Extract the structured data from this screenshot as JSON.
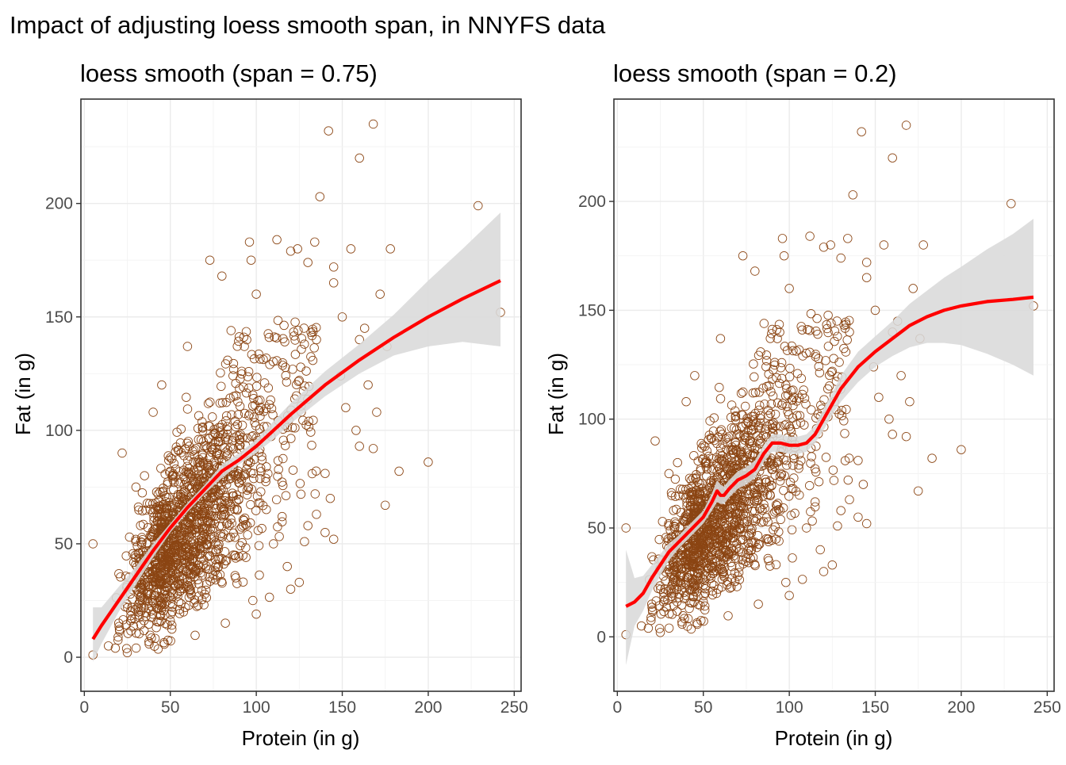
{
  "figure": {
    "title": "Impact of adjusting loess smooth span, in NNYFS data"
  },
  "chart_data": [
    {
      "type": "scatter",
      "title": "loess smooth (span = 0.75)",
      "xlabel": "Protein (in g)",
      "ylabel": "Fat (in g)",
      "xlim": [
        -2,
        254
      ],
      "ylim": [
        -15,
        246
      ],
      "xticks": [
        0,
        50,
        100,
        150,
        200,
        250
      ],
      "yticks": [
        0,
        50,
        100,
        150,
        200
      ],
      "grid": true,
      "colors": {
        "points": "#8B4513",
        "smooth": "#FF0000",
        "band": "#D9D9D9"
      },
      "n_points": 1500,
      "outliers": [
        [
          5,
          50
        ],
        [
          5,
          1
        ],
        [
          14,
          5
        ],
        [
          18,
          4
        ],
        [
          20,
          15
        ],
        [
          22,
          90
        ],
        [
          25,
          2
        ],
        [
          30,
          75
        ],
        [
          35,
          80
        ],
        [
          40,
          108
        ],
        [
          45,
          120
        ],
        [
          60,
          137
        ],
        [
          73,
          175
        ],
        [
          80,
          168
        ],
        [
          96,
          183
        ],
        [
          97,
          175
        ],
        [
          100,
          160
        ],
        [
          112,
          184
        ],
        [
          120,
          179
        ],
        [
          124,
          180
        ],
        [
          130,
          174
        ],
        [
          134,
          183
        ],
        [
          137,
          203
        ],
        [
          142,
          232
        ],
        [
          145,
          172
        ],
        [
          155,
          180
        ],
        [
          160,
          220
        ],
        [
          168,
          235
        ],
        [
          172,
          160
        ],
        [
          178,
          180
        ],
        [
          175,
          67
        ],
        [
          183,
          82
        ],
        [
          200,
          86
        ],
        [
          229,
          199
        ],
        [
          242,
          152
        ],
        [
          140,
          55
        ],
        [
          145,
          52
        ],
        [
          143,
          70
        ],
        [
          160,
          93
        ],
        [
          168,
          92
        ],
        [
          158,
          100
        ],
        [
          165,
          120
        ],
        [
          176,
          137
        ],
        [
          170,
          108
        ],
        [
          149,
          124
        ],
        [
          152,
          110
        ],
        [
          120,
          30
        ],
        [
          118,
          40
        ],
        [
          100,
          19
        ],
        [
          98,
          25
        ],
        [
          82,
          15
        ],
        [
          88,
          35
        ],
        [
          94,
          44
        ],
        [
          110,
          50
        ],
        [
          115,
          62
        ],
        [
          125,
          33
        ],
        [
          130,
          58
        ],
        [
          135,
          63
        ],
        [
          140,
          81
        ],
        [
          150,
          150
        ],
        [
          160,
          140
        ],
        [
          163,
          145
        ],
        [
          135,
          140
        ],
        [
          128,
          138
        ],
        [
          145,
          165
        ],
        [
          125,
          122
        ]
      ],
      "smooth": {
        "x": [
          5,
          10,
          20,
          30,
          40,
          50,
          60,
          70,
          80,
          90,
          100,
          110,
          120,
          140,
          160,
          180,
          200,
          220,
          242
        ],
        "y": [
          8,
          14,
          25,
          36,
          47,
          57,
          66,
          74,
          82,
          87,
          93,
          100,
          107,
          120,
          131,
          141,
          150,
          158,
          166
        ],
        "lower": [
          -2,
          6,
          20,
          32,
          44,
          55,
          64,
          72,
          79,
          85,
          90,
          96,
          103,
          115,
          125,
          133,
          137,
          139,
          137
        ],
        "upper": [
          22,
          22,
          31,
          40,
          50,
          59,
          68,
          76,
          85,
          90,
          96,
          104,
          112,
          126,
          138,
          151,
          166,
          180,
          196
        ]
      }
    },
    {
      "type": "scatter",
      "title": "loess smooth (span = 0.2)",
      "xlabel": "Protein (in g)",
      "ylabel": "Fat (in g)",
      "xlim": [
        -2,
        254
      ],
      "ylim": [
        -25,
        247
      ],
      "xticks": [
        0,
        50,
        100,
        150,
        200,
        250
      ],
      "yticks": [
        0,
        50,
        100,
        150,
        200
      ],
      "grid": true,
      "colors": {
        "points": "#8B4513",
        "smooth": "#FF0000",
        "band": "#D9D9D9"
      },
      "n_points": 1500,
      "outliers": [
        [
          5,
          50
        ],
        [
          5,
          1
        ],
        [
          14,
          5
        ],
        [
          18,
          4
        ],
        [
          20,
          15
        ],
        [
          22,
          90
        ],
        [
          25,
          2
        ],
        [
          30,
          75
        ],
        [
          35,
          80
        ],
        [
          40,
          108
        ],
        [
          45,
          120
        ],
        [
          60,
          137
        ],
        [
          73,
          175
        ],
        [
          80,
          168
        ],
        [
          96,
          183
        ],
        [
          97,
          175
        ],
        [
          100,
          160
        ],
        [
          112,
          184
        ],
        [
          120,
          179
        ],
        [
          124,
          180
        ],
        [
          130,
          174
        ],
        [
          134,
          183
        ],
        [
          137,
          203
        ],
        [
          142,
          232
        ],
        [
          145,
          172
        ],
        [
          155,
          180
        ],
        [
          160,
          220
        ],
        [
          168,
          235
        ],
        [
          172,
          160
        ],
        [
          178,
          180
        ],
        [
          175,
          67
        ],
        [
          183,
          82
        ],
        [
          200,
          86
        ],
        [
          229,
          199
        ],
        [
          242,
          152
        ],
        [
          140,
          55
        ],
        [
          145,
          52
        ],
        [
          143,
          70
        ],
        [
          160,
          93
        ],
        [
          168,
          92
        ],
        [
          158,
          100
        ],
        [
          165,
          120
        ],
        [
          176,
          137
        ],
        [
          170,
          108
        ],
        [
          149,
          124
        ],
        [
          152,
          110
        ],
        [
          120,
          30
        ],
        [
          118,
          40
        ],
        [
          100,
          19
        ],
        [
          98,
          25
        ],
        [
          82,
          15
        ],
        [
          88,
          35
        ],
        [
          94,
          44
        ],
        [
          110,
          50
        ],
        [
          115,
          62
        ],
        [
          125,
          33
        ],
        [
          130,
          58
        ],
        [
          135,
          63
        ],
        [
          140,
          81
        ],
        [
          150,
          150
        ],
        [
          160,
          140
        ],
        [
          163,
          145
        ],
        [
          135,
          140
        ],
        [
          128,
          138
        ],
        [
          145,
          165
        ],
        [
          125,
          122
        ]
      ],
      "smooth": {
        "x": [
          5,
          10,
          15,
          20,
          25,
          30,
          35,
          40,
          45,
          50,
          55,
          58,
          60,
          62,
          65,
          70,
          75,
          80,
          85,
          90,
          95,
          100,
          105,
          110,
          115,
          120,
          125,
          130,
          140,
          150,
          160,
          170,
          180,
          190,
          200,
          215,
          230,
          242
        ],
        "y": [
          14,
          16,
          20,
          27,
          33,
          39,
          43,
          47,
          51,
          55,
          62,
          67,
          65,
          65,
          68,
          72,
          74,
          77,
          84,
          89,
          89,
          88,
          88,
          89,
          93,
          100,
          107,
          114,
          124,
          131,
          137,
          143,
          147,
          150,
          152,
          154,
          155,
          156
        ],
        "lower": [
          -13,
          5,
          12,
          21,
          28,
          35,
          40,
          44,
          48,
          52,
          58,
          62,
          61,
          61,
          64,
          68,
          70,
          73,
          80,
          85,
          85,
          84,
          84,
          85,
          89,
          95,
          102,
          108,
          117,
          124,
          129,
          133,
          135,
          135,
          134,
          130,
          125,
          120
        ],
        "upper": [
          40,
          27,
          28,
          33,
          38,
          43,
          46,
          50,
          54,
          58,
          66,
          72,
          70,
          69,
          72,
          76,
          78,
          81,
          88,
          93,
          93,
          92,
          92,
          93,
          97,
          105,
          112,
          120,
          131,
          138,
          145,
          153,
          159,
          165,
          170,
          178,
          185,
          192
        ]
      }
    }
  ]
}
